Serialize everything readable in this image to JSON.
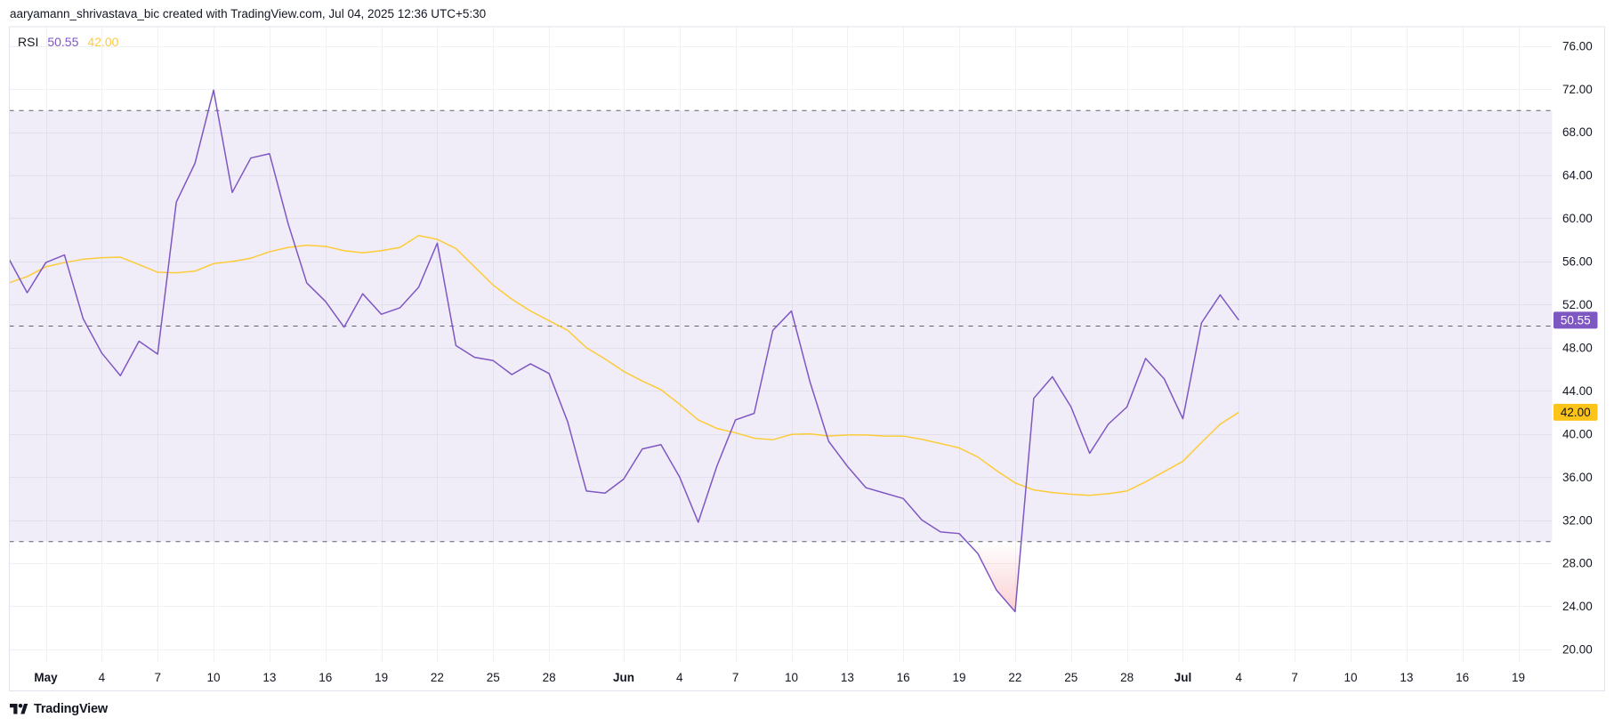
{
  "header": {
    "attribution": "aaryamann_shrivastava_bic created with TradingView.com, Jul 04, 2025 12:36 UTC+5:30"
  },
  "legend": {
    "indicator": "RSI",
    "values": [
      {
        "name": "rsi-current",
        "text": "50.55",
        "color": "#7E57C2"
      },
      {
        "name": "ma-current",
        "text": "42.00",
        "color": "#FFC940"
      }
    ]
  },
  "footer": {
    "brand": "TradingView"
  },
  "colors": {
    "text": "#131722",
    "axis_text": "#131722",
    "grid": "#F0F1F4",
    "border": "#E0E3EB",
    "dashed_level": "#5D6069",
    "rsi_line": "#7E57C2",
    "ma_line": "#FCCB38",
    "band_fill": "rgba(126,87,194,0.11)",
    "oversold_fill": "#F0616D",
    "overbought_fill": "#4CAF50",
    "rsi_badge_bg": "#7E57C2",
    "rsi_badge_fg": "#FFFFFF",
    "ma_badge_bg": "#FCC419",
    "ma_badge_fg": "#131722"
  },
  "chart_data": {
    "type": "line",
    "title": "RSI",
    "grid": true,
    "legend_position": "top-left",
    "ylim": [
      18.8,
      77.8
    ],
    "levels": {
      "overbought": 70,
      "middle": 50,
      "oversold": 30
    },
    "y_ticks": [
      76,
      72,
      68,
      64,
      60,
      56,
      52,
      48,
      44,
      40,
      36,
      32,
      28,
      24,
      20
    ],
    "y_tick_labels": [
      "76.00",
      "72.00",
      "68.00",
      "64.00",
      "60.00",
      "56.00",
      "52.00",
      "48.00",
      "44.00",
      "40.00",
      "36.00",
      "32.00",
      "28.00",
      "24.00",
      "20.00"
    ],
    "x_ticks": [
      {
        "label": "May",
        "day": 2,
        "bold": true
      },
      {
        "label": "4",
        "day": 5
      },
      {
        "label": "7",
        "day": 8
      },
      {
        "label": "10",
        "day": 11
      },
      {
        "label": "13",
        "day": 14
      },
      {
        "label": "16",
        "day": 17
      },
      {
        "label": "19",
        "day": 20
      },
      {
        "label": "22",
        "day": 23
      },
      {
        "label": "25",
        "day": 26
      },
      {
        "label": "28",
        "day": 29
      },
      {
        "label": "Jun",
        "day": 33,
        "bold": true
      },
      {
        "label": "4",
        "day": 36
      },
      {
        "label": "7",
        "day": 39
      },
      {
        "label": "10",
        "day": 42
      },
      {
        "label": "13",
        "day": 45
      },
      {
        "label": "16",
        "day": 48
      },
      {
        "label": "19",
        "day": 51
      },
      {
        "label": "22",
        "day": 54
      },
      {
        "label": "25",
        "day": 57
      },
      {
        "label": "28",
        "day": 60
      },
      {
        "label": "Jul",
        "day": 63,
        "bold": true
      },
      {
        "label": "4",
        "day": 66
      },
      {
        "label": "7",
        "day": 69
      },
      {
        "label": "10",
        "day": 72
      },
      {
        "label": "13",
        "day": 75
      },
      {
        "label": "16",
        "day": 78
      },
      {
        "label": "19",
        "day": 81
      }
    ],
    "dates": [
      "Apr 29",
      "Apr 30",
      "May 1",
      "May 2",
      "May 3",
      "May 4",
      "May 5",
      "May 6",
      "May 7",
      "May 8",
      "May 9",
      "May 10",
      "May 11",
      "May 12",
      "May 13",
      "May 14",
      "May 15",
      "May 16",
      "May 17",
      "May 18",
      "May 19",
      "May 20",
      "May 21",
      "May 22",
      "May 23",
      "May 24",
      "May 25",
      "May 26",
      "May 27",
      "May 28",
      "May 29",
      "May 30",
      "May 31",
      "Jun 1",
      "Jun 2",
      "Jun 3",
      "Jun 4",
      "Jun 5",
      "Jun 6",
      "Jun 7",
      "Jun 8",
      "Jun 9",
      "Jun 10",
      "Jun 11",
      "Jun 12",
      "Jun 13",
      "Jun 14",
      "Jun 15",
      "Jun 16",
      "Jun 17",
      "Jun 18",
      "Jun 19",
      "Jun 20",
      "Jun 21",
      "Jun 22",
      "Jun 23",
      "Jun 24",
      "Jun 25",
      "Jun 26",
      "Jun 27",
      "Jun 28",
      "Jun 29",
      "Jun 30",
      "Jul 1",
      "Jul 2",
      "Jul 3",
      "Jul 4"
    ],
    "series": [
      {
        "name": "RSI",
        "color": "#7E57C2",
        "values": [
          56.3,
          53.1,
          55.9,
          56.6,
          50.7,
          47.5,
          45.4,
          48.6,
          47.4,
          61.5,
          65.1,
          71.9,
          62.4,
          65.6,
          66.0,
          59.5,
          54.0,
          52.3,
          49.9,
          53.0,
          51.1,
          51.7,
          53.6,
          57.7,
          48.2,
          47.1,
          46.8,
          45.5,
          46.5,
          45.6,
          41.1,
          34.7,
          34.5,
          35.8,
          38.6,
          39.0,
          36.0,
          31.8,
          37.0,
          41.3,
          41.9,
          49.6,
          51.4,
          44.8,
          39.3,
          37.0,
          35.0,
          34.5,
          34.0,
          32.0,
          30.9,
          30.75,
          28.9,
          25.5,
          23.5,
          43.3,
          45.3,
          42.5,
          38.2,
          40.9,
          42.5,
          47.0,
          45.1,
          41.4,
          50.3,
          52.9,
          50.55
        ]
      },
      {
        "name": "RSI-based MA",
        "color": "#FCCB38",
        "values": [
          54.0,
          54.6,
          55.5,
          55.9,
          56.2,
          56.35,
          56.4,
          55.7,
          55.0,
          54.95,
          55.1,
          55.8,
          56.0,
          56.3,
          56.9,
          57.3,
          57.5,
          57.4,
          57.0,
          56.8,
          57.0,
          57.3,
          58.4,
          58.05,
          57.2,
          55.5,
          53.8,
          52.5,
          51.4,
          50.5,
          49.6,
          48.0,
          46.95,
          45.8,
          44.9,
          44.1,
          42.75,
          41.3,
          40.5,
          40.1,
          39.6,
          39.45,
          39.95,
          40.0,
          39.8,
          39.9,
          39.9,
          39.8,
          39.8,
          39.5,
          39.1,
          38.7,
          37.85,
          36.6,
          35.45,
          34.8,
          34.55,
          34.4,
          34.3,
          34.45,
          34.7,
          35.55,
          36.5,
          37.45,
          39.2,
          40.9,
          42.0
        ]
      }
    ],
    "last_values": [
      {
        "text": "50.55",
        "value": 50.55,
        "bg": "#7E57C2",
        "fg": "#FFFFFF"
      },
      {
        "text": "42.00",
        "value": 42.0,
        "bg": "#FCC419",
        "fg": "#131722"
      }
    ]
  }
}
